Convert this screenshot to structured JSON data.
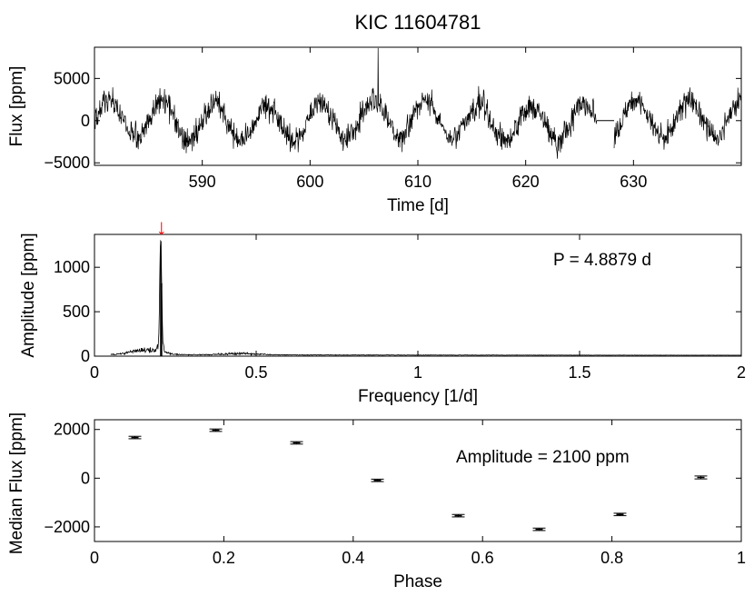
{
  "title": "KIC 11604781",
  "colors": {
    "axis": "#000000",
    "trace": "#000000",
    "marker": "#ff0000",
    "background": "#ffffff"
  },
  "chart_data": [
    {
      "type": "line",
      "panel": "light-curve",
      "xlabel": "Time [d]",
      "ylabel": "Flux [ppm]",
      "xlim": [
        580,
        640
      ],
      "ylim": [
        -5300,
        8700
      ],
      "xticks": [
        590,
        600,
        610,
        620,
        630
      ],
      "xtick_labels": [
        "590",
        "600",
        "610",
        "620",
        "630"
      ],
      "yticks": [
        -5000,
        0,
        5000
      ],
      "ytick_labels": [
        "−5000",
        "0",
        "5000"
      ],
      "signal": {
        "period_days": 4.8879,
        "amplitude_ppm": 2200,
        "reference_peak_time": 586.3,
        "noise_ppm": 1250,
        "spike_time": 606.3,
        "spike_value": 8600,
        "gap_start": 626.6,
        "gap_end": 628.2,
        "samples": 1700
      }
    },
    {
      "type": "line",
      "panel": "periodogram",
      "xlabel": "Frequency [1/d]",
      "ylabel": "Amplitude [ppm]",
      "xlim": [
        0,
        2
      ],
      "ylim": [
        0,
        1370
      ],
      "xticks": [
        0,
        0.5,
        1,
        1.5,
        2
      ],
      "xtick_labels": [
        "0",
        "0.5",
        "1",
        "1.5",
        "2"
      ],
      "yticks": [
        0,
        500,
        1000
      ],
      "ytick_labels": [
        "0",
        "500",
        "1000"
      ],
      "peak_frequency": 0.2046,
      "peak_amplitude": 1250,
      "secondary_peak_amplitude": 820,
      "start_frequency": 0.05,
      "annotation": "P = 4.8879 d",
      "marker": "↓"
    },
    {
      "type": "scatter",
      "panel": "phase-folded",
      "xlabel": "Phase",
      "ylabel": "Median Flux [ppm]",
      "xlim": [
        0,
        1
      ],
      "ylim": [
        -2600,
        2400
      ],
      "xticks": [
        0,
        0.2,
        0.4,
        0.6,
        0.8,
        1
      ],
      "xtick_labels": [
        "0",
        "0.2",
        "0.4",
        "0.6",
        "0.8",
        "1"
      ],
      "yticks": [
        -2000,
        0,
        2000
      ],
      "ytick_labels": [
        "−2000",
        "0",
        "2000"
      ],
      "points": [
        {
          "x": 0.0625,
          "y": 1670,
          "err": 50
        },
        {
          "x": 0.1875,
          "y": 1970,
          "err": 50
        },
        {
          "x": 0.3125,
          "y": 1450,
          "err": 50
        },
        {
          "x": 0.4375,
          "y": -90,
          "err": 50
        },
        {
          "x": 0.5625,
          "y": -1540,
          "err": 50
        },
        {
          "x": 0.6875,
          "y": -2100,
          "err": 50
        },
        {
          "x": 0.8125,
          "y": -1490,
          "err": 50
        },
        {
          "x": 0.9375,
          "y": 30,
          "err": 60
        }
      ],
      "annotation": "Amplitude = 2100 ppm"
    }
  ]
}
